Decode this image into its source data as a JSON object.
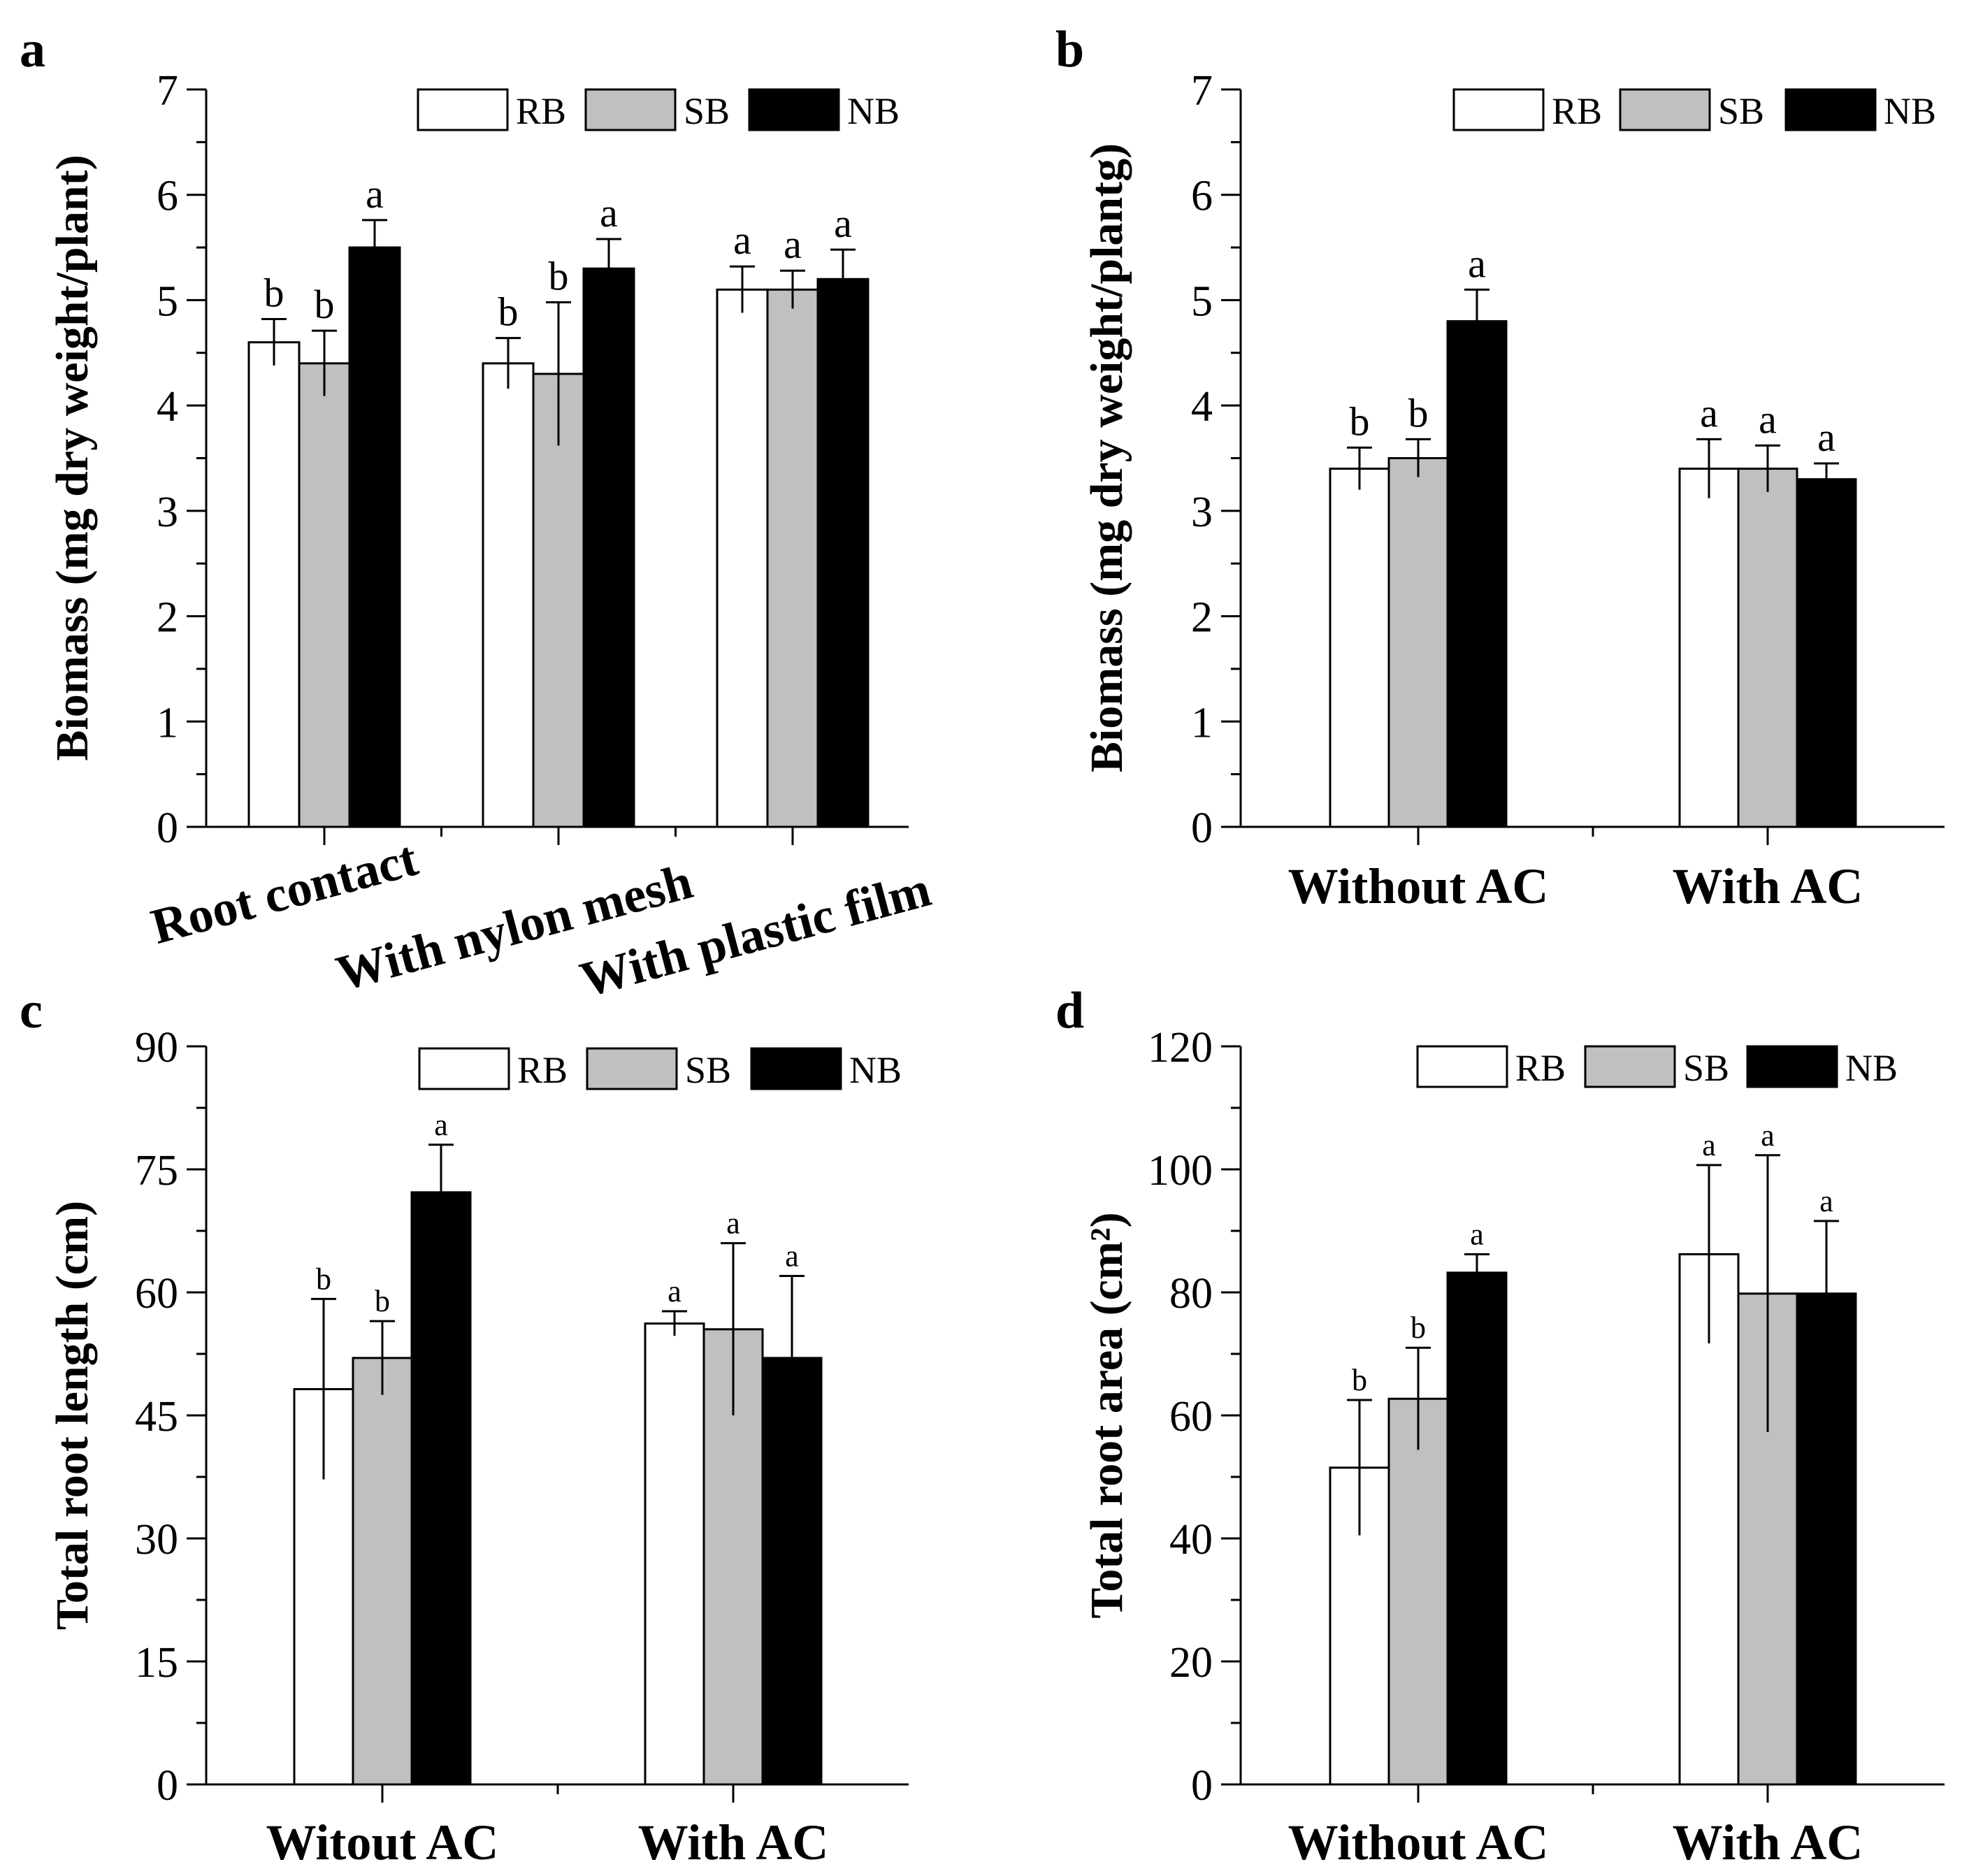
{
  "colors": {
    "RB": "#ffffff",
    "SB": "#c0c0c0",
    "NB": "#000000"
  },
  "chart_data": [
    {
      "panel": "a",
      "type": "bar",
      "ylabel": "Biomass (mg dry weight/plant)",
      "ylim": [
        0,
        7
      ],
      "yticks": [
        "0",
        "1",
        "2",
        "3",
        "4",
        "5",
        "6",
        "7"
      ],
      "categories": [
        "Root contact",
        "With nylon mesh",
        "With plastic film"
      ],
      "series": [
        {
          "name": "RB",
          "values": [
            4.6,
            4.4,
            5.1
          ],
          "errors": [
            0.22,
            0.24,
            0.22
          ],
          "letters": [
            "b",
            "b",
            "a"
          ]
        },
        {
          "name": "SB",
          "values": [
            4.4,
            4.3,
            5.1
          ],
          "errors": [
            0.31,
            0.68,
            0.18
          ],
          "letters": [
            "b",
            "b",
            "a"
          ]
        },
        {
          "name": "NB",
          "values": [
            5.5,
            5.3,
            5.2
          ],
          "errors": [
            0.26,
            0.28,
            0.28
          ],
          "letters": [
            "a",
            "a",
            "a"
          ]
        }
      ],
      "legend": [
        "RB",
        "SB",
        "NB"
      ]
    },
    {
      "panel": "b",
      "type": "bar",
      "ylabel": "Biomass (mg dry weight/plantg)",
      "ylim": [
        0,
        7
      ],
      "yticks": [
        "0",
        "1",
        "2",
        "3",
        "4",
        "5",
        "6",
        "7"
      ],
      "categories": [
        "Without AC",
        "With AC"
      ],
      "series": [
        {
          "name": "RB",
          "values": [
            3.4,
            3.4
          ],
          "errors": [
            0.2,
            0.28
          ],
          "letters": [
            "b",
            "a"
          ]
        },
        {
          "name": "SB",
          "values": [
            3.5,
            3.4
          ],
          "errors": [
            0.18,
            0.22
          ],
          "letters": [
            "b",
            "a"
          ]
        },
        {
          "name": "NB",
          "values": [
            4.8,
            3.3
          ],
          "errors": [
            0.3,
            0.15
          ],
          "letters": [
            "a",
            "a"
          ]
        }
      ],
      "legend": [
        "RB",
        "SB",
        "NB"
      ]
    },
    {
      "panel": "c",
      "type": "bar",
      "ylabel": "Total root length (cm)",
      "ylim": [
        0,
        90
      ],
      "yticks": [
        "0",
        "15",
        "30",
        "45",
        "60",
        "75",
        "90"
      ],
      "categories": [
        "Witout AC",
        "With AC"
      ],
      "series": [
        {
          "name": "RB",
          "values": [
            48.2,
            56.2
          ],
          "errors": [
            11.0,
            1.5
          ],
          "letters": [
            "b",
            "a"
          ]
        },
        {
          "name": "SB",
          "values": [
            52.0,
            55.5
          ],
          "errors": [
            4.5,
            10.5
          ],
          "letters": [
            "b",
            "a"
          ]
        },
        {
          "name": "NB",
          "values": [
            72.2,
            52.0
          ],
          "errors": [
            5.8,
            10.0
          ],
          "letters": [
            "a",
            "a"
          ]
        }
      ],
      "legend": [
        "RB",
        "SB",
        "NB"
      ]
    },
    {
      "panel": "d",
      "type": "bar",
      "ylabel": "Total root area (cm²)",
      "ylim": [
        0,
        120
      ],
      "yticks": [
        "0",
        "20",
        "40",
        "60",
        "80",
        "100",
        "120"
      ],
      "categories": [
        "Without AC",
        "With AC"
      ],
      "series": [
        {
          "name": "RB",
          "values": [
            51.5,
            86.2
          ],
          "errors": [
            11.0,
            14.5
          ],
          "letters": [
            "b",
            "a"
          ]
        },
        {
          "name": "SB",
          "values": [
            62.7,
            79.8
          ],
          "errors": [
            8.3,
            22.5
          ],
          "letters": [
            "b",
            "a"
          ]
        },
        {
          "name": "NB",
          "values": [
            83.2,
            79.8
          ],
          "errors": [
            3.0,
            11.8
          ],
          "letters": [
            "a",
            "a"
          ]
        }
      ],
      "legend": [
        "RB",
        "SB",
        "NB"
      ]
    }
  ]
}
